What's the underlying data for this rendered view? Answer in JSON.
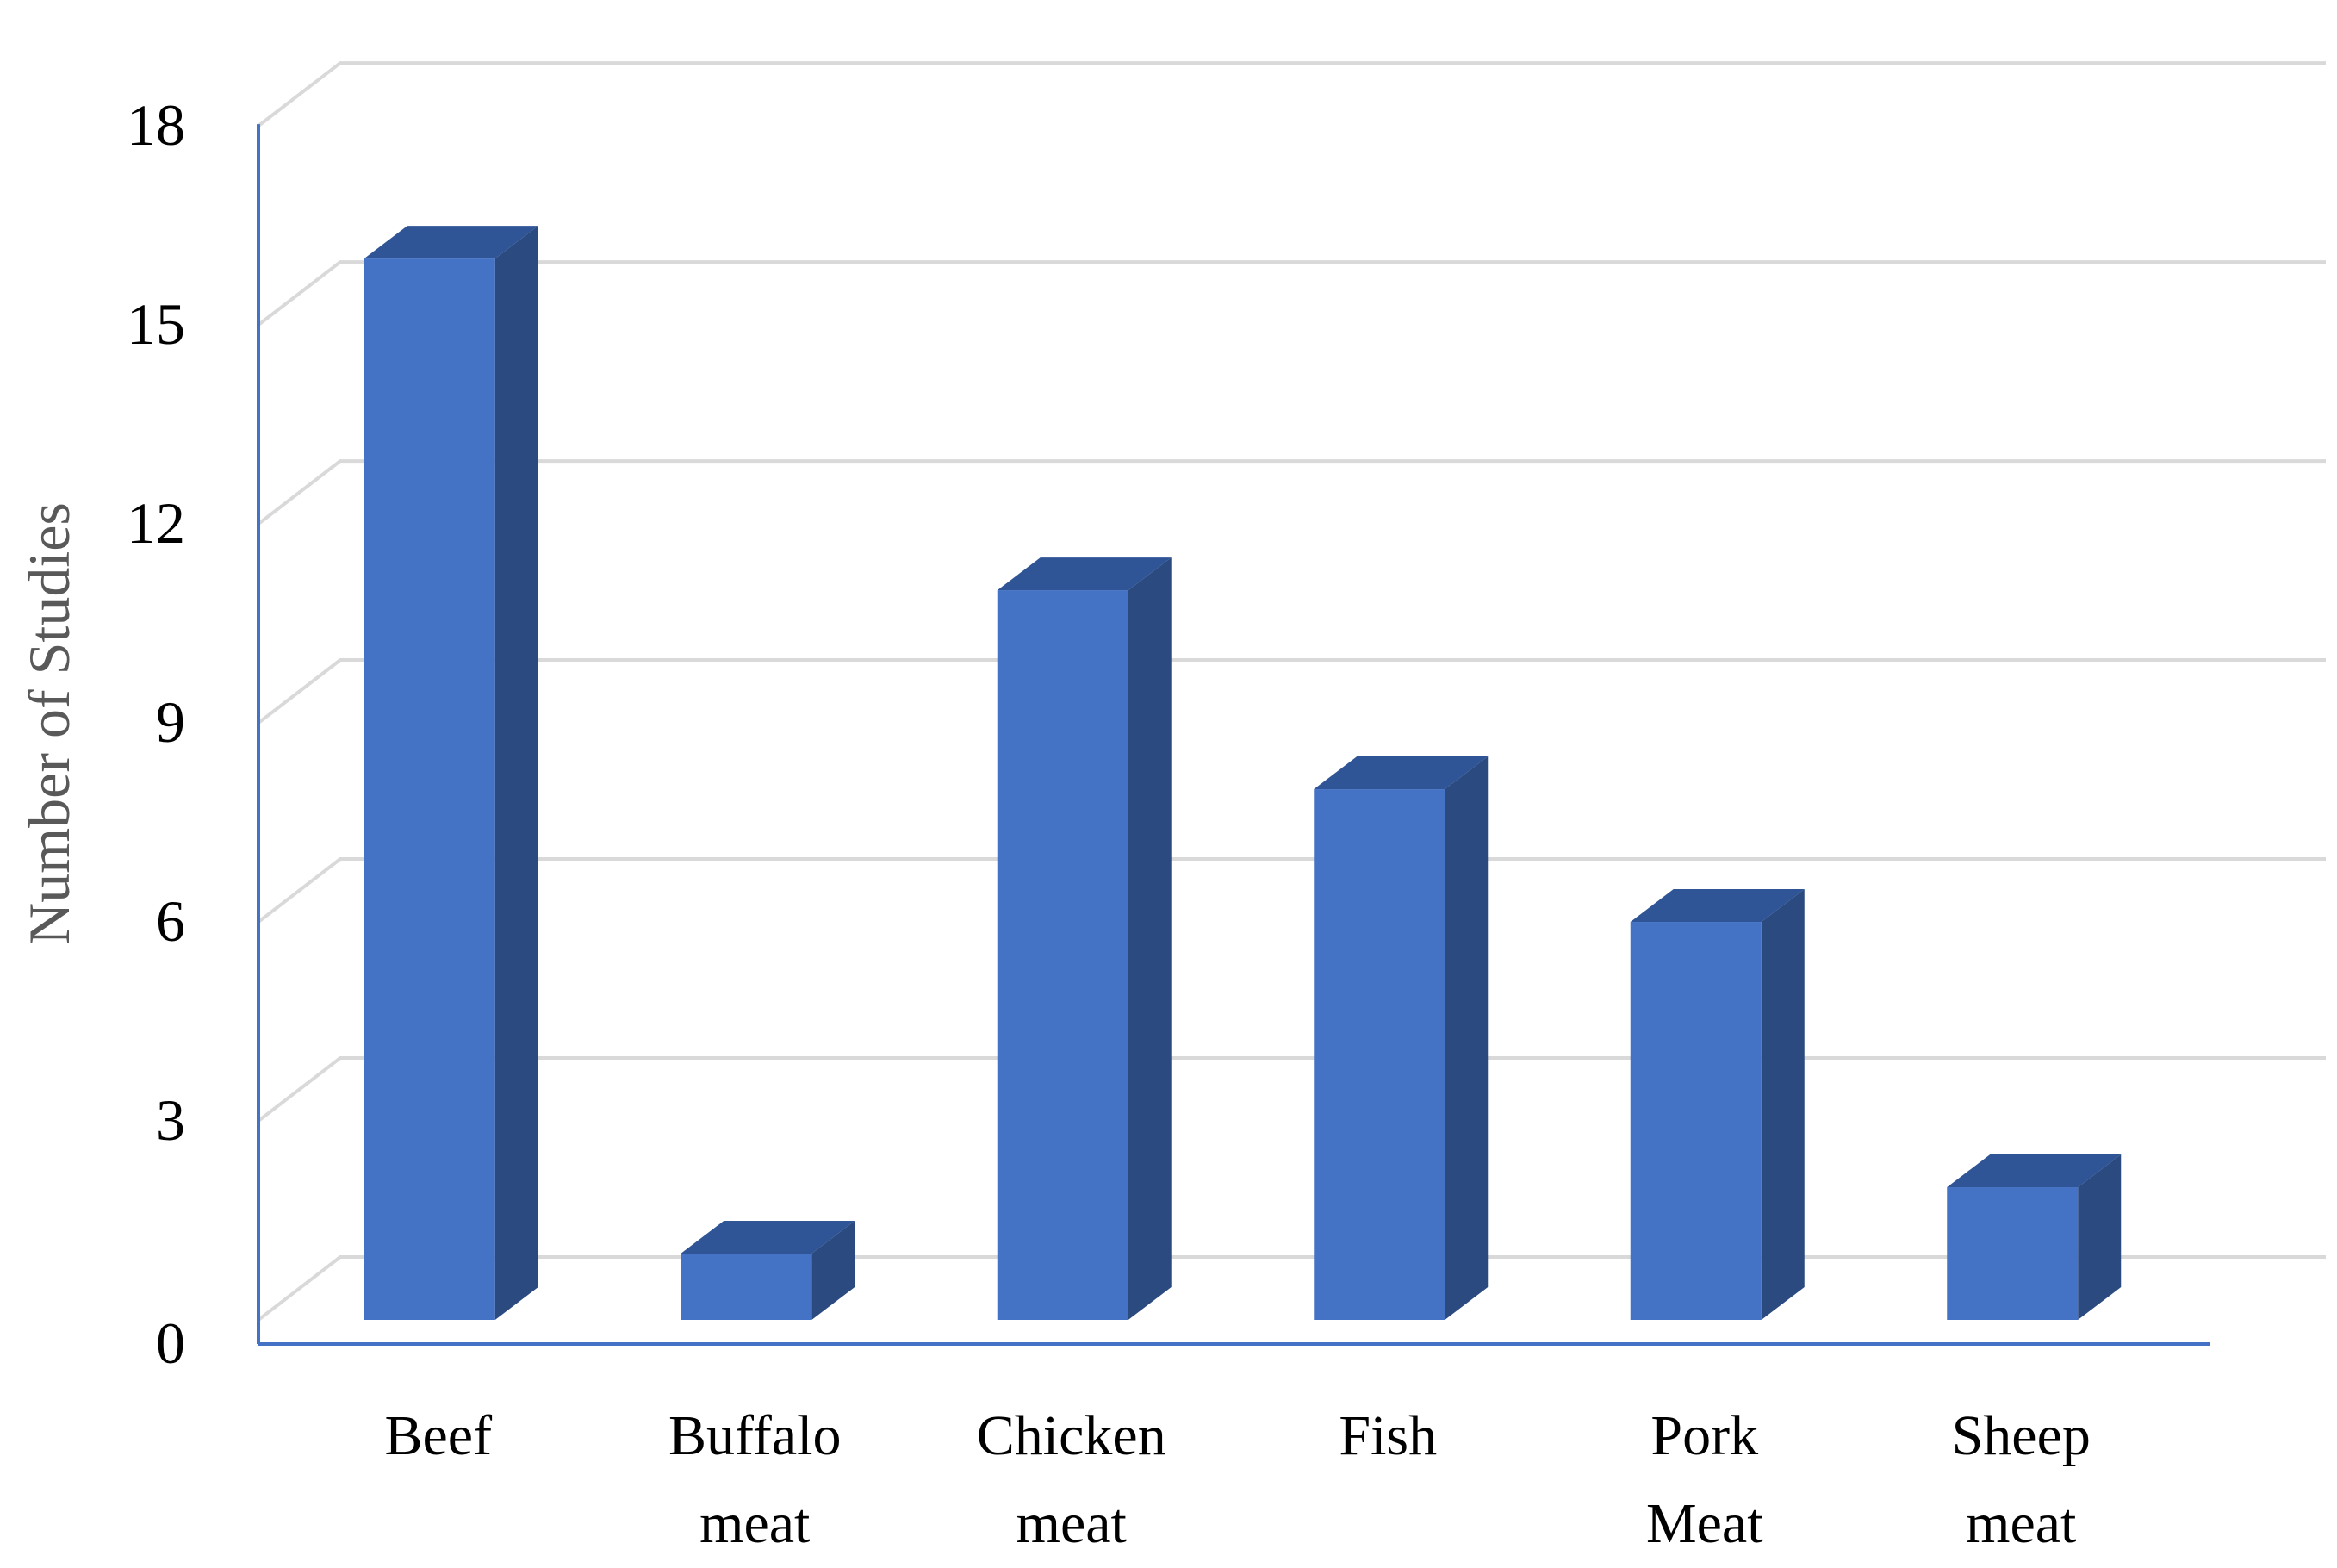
{
  "chart_data": {
    "type": "bar",
    "style": "3d-column",
    "categories": [
      [
        "Beef"
      ],
      [
        "Buffalo",
        "meat"
      ],
      [
        "Chicken",
        "meat"
      ],
      [
        "Fish"
      ],
      [
        "Pork",
        "Meat"
      ],
      [
        "Sheep",
        "meat"
      ]
    ],
    "values": [
      16,
      1,
      11,
      8,
      6,
      2
    ],
    "title": "",
    "xlabel": "",
    "ylabel": "Number of Studies",
    "ylim": [
      0,
      18
    ],
    "yticks": [
      "0",
      "3",
      "6",
      "9",
      "12",
      "15",
      "18"
    ],
    "grid": true,
    "legend": "none",
    "colors": {
      "bar_front": "#4472C4",
      "bar_side": "#2B4A80",
      "bar_top": "#2F5597",
      "axis": "#4472C4",
      "grid": "#D9D9D9",
      "tick_text": "#000000",
      "axis_title": "#595959"
    }
  }
}
